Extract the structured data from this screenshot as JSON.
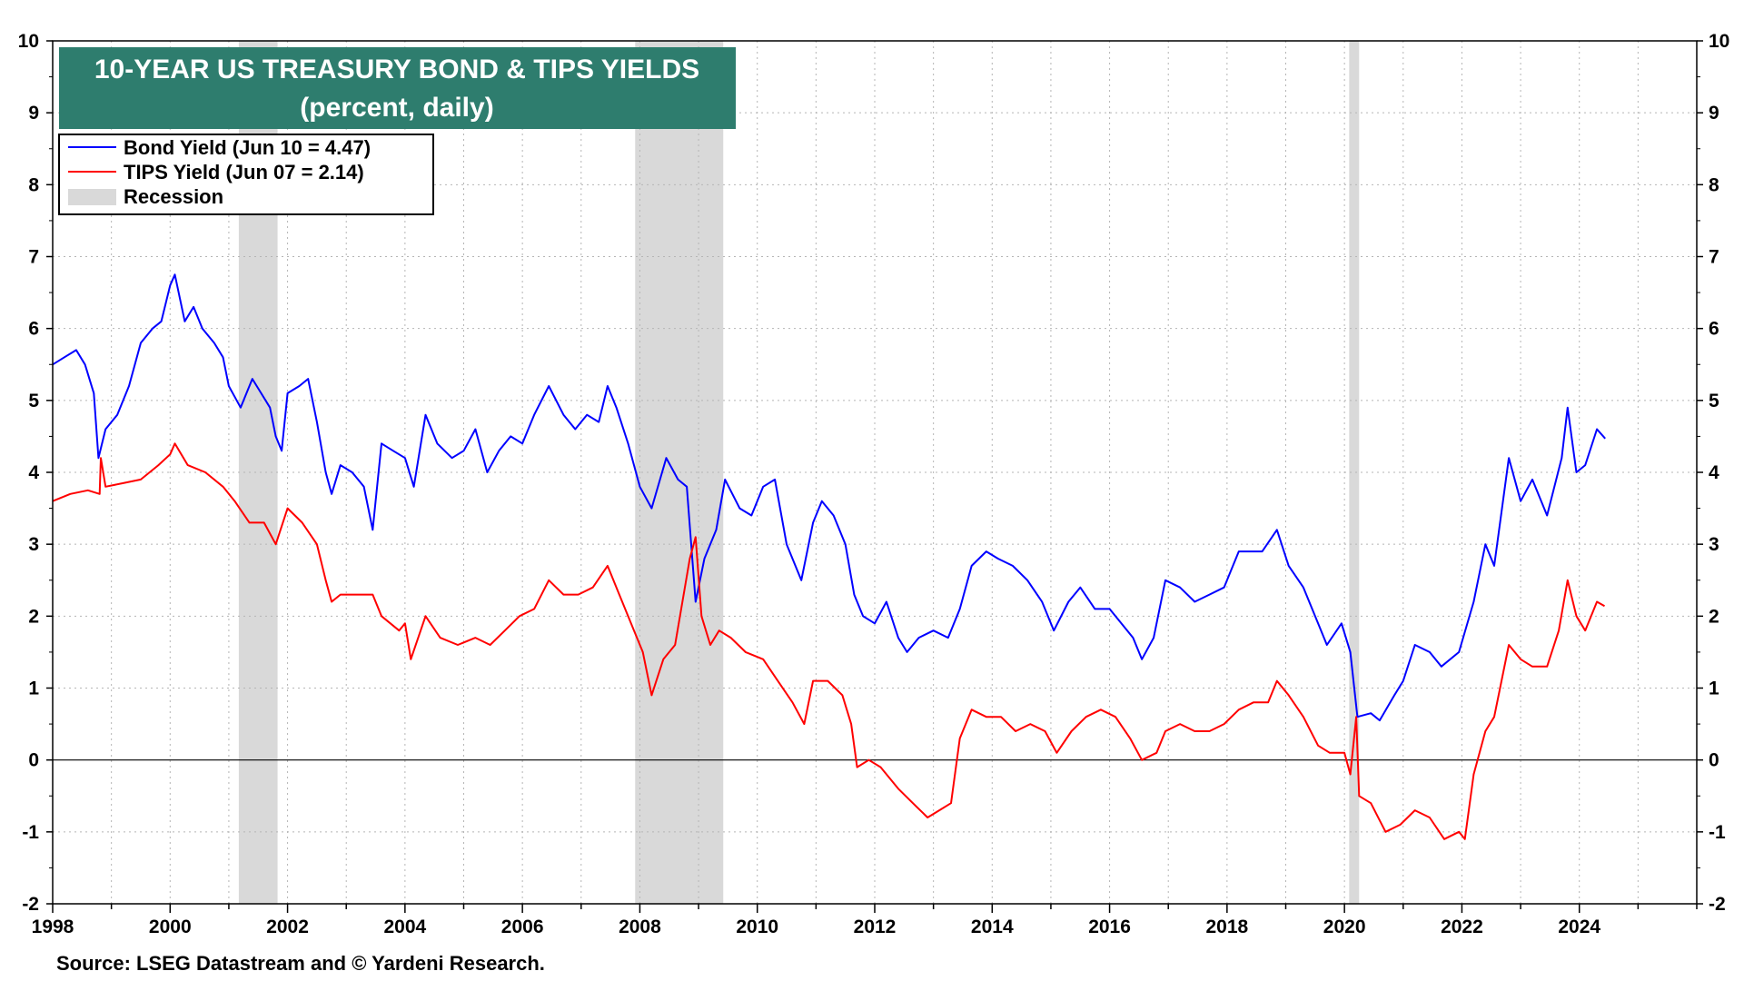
{
  "chart_data": {
    "type": "line",
    "title": "10-YEAR US TREASURY BOND & TIPS YIELDS",
    "subtitle": "(percent, daily)",
    "source": "Source: LSEG Datastream and © Yardeni Research.",
    "xlim": [
      1998,
      2026
    ],
    "ylim": [
      -2,
      10
    ],
    "x_ticks": [
      1998,
      2000,
      2002,
      2004,
      2006,
      2008,
      2010,
      2012,
      2014,
      2016,
      2018,
      2020,
      2022,
      2024
    ],
    "y_ticks": [
      -2,
      -1,
      0,
      1,
      2,
      3,
      4,
      5,
      6,
      7,
      8,
      9,
      10
    ],
    "grid": true,
    "legend_position": "top-left",
    "colors": {
      "bond": "#0000ff",
      "tips": "#ff0000",
      "recession": "#d9d9d9",
      "title_bg": "#2e7d6e"
    },
    "recessions": [
      {
        "label": "Recession",
        "start": 2001.17,
        "end": 2001.83
      },
      {
        "label": "Recession",
        "start": 2007.92,
        "end": 2009.42
      },
      {
        "label": "Recession",
        "start": 2020.08,
        "end": 2020.25
      }
    ],
    "series": [
      {
        "name": "Bond Yield (Jun 10 = 4.47)",
        "color": "#0000ff",
        "points": [
          [
            1998.0,
            5.5
          ],
          [
            1998.2,
            5.6
          ],
          [
            1998.4,
            5.7
          ],
          [
            1998.55,
            5.5
          ],
          [
            1998.7,
            5.1
          ],
          [
            1998.78,
            4.2
          ],
          [
            1998.9,
            4.6
          ],
          [
            1999.1,
            4.8
          ],
          [
            1999.3,
            5.2
          ],
          [
            1999.5,
            5.8
          ],
          [
            1999.7,
            6.0
          ],
          [
            1999.85,
            6.1
          ],
          [
            2000.0,
            6.6
          ],
          [
            2000.08,
            6.75
          ],
          [
            2000.25,
            6.1
          ],
          [
            2000.4,
            6.3
          ],
          [
            2000.55,
            6.0
          ],
          [
            2000.75,
            5.8
          ],
          [
            2000.9,
            5.6
          ],
          [
            2001.0,
            5.2
          ],
          [
            2001.2,
            4.9
          ],
          [
            2001.4,
            5.3
          ],
          [
            2001.55,
            5.1
          ],
          [
            2001.7,
            4.9
          ],
          [
            2001.8,
            4.5
          ],
          [
            2001.9,
            4.3
          ],
          [
            2002.0,
            5.1
          ],
          [
            2002.2,
            5.2
          ],
          [
            2002.35,
            5.3
          ],
          [
            2002.5,
            4.7
          ],
          [
            2002.65,
            4.0
          ],
          [
            2002.75,
            3.7
          ],
          [
            2002.9,
            4.1
          ],
          [
            2003.1,
            4.0
          ],
          [
            2003.3,
            3.8
          ],
          [
            2003.45,
            3.2
          ],
          [
            2003.6,
            4.4
          ],
          [
            2003.8,
            4.3
          ],
          [
            2004.0,
            4.2
          ],
          [
            2004.15,
            3.8
          ],
          [
            2004.35,
            4.8
          ],
          [
            2004.55,
            4.4
          ],
          [
            2004.8,
            4.2
          ],
          [
            2005.0,
            4.3
          ],
          [
            2005.2,
            4.6
          ],
          [
            2005.4,
            4.0
          ],
          [
            2005.6,
            4.3
          ],
          [
            2005.8,
            4.5
          ],
          [
            2006.0,
            4.4
          ],
          [
            2006.2,
            4.8
          ],
          [
            2006.45,
            5.2
          ],
          [
            2006.7,
            4.8
          ],
          [
            2006.9,
            4.6
          ],
          [
            2007.1,
            4.8
          ],
          [
            2007.3,
            4.7
          ],
          [
            2007.45,
            5.2
          ],
          [
            2007.6,
            4.9
          ],
          [
            2007.8,
            4.4
          ],
          [
            2008.0,
            3.8
          ],
          [
            2008.2,
            3.5
          ],
          [
            2008.45,
            4.2
          ],
          [
            2008.65,
            3.9
          ],
          [
            2008.8,
            3.8
          ],
          [
            2008.95,
            2.2
          ],
          [
            2009.1,
            2.8
          ],
          [
            2009.3,
            3.2
          ],
          [
            2009.45,
            3.9
          ],
          [
            2009.7,
            3.5
          ],
          [
            2009.9,
            3.4
          ],
          [
            2010.1,
            3.8
          ],
          [
            2010.3,
            3.9
          ],
          [
            2010.5,
            3.0
          ],
          [
            2010.75,
            2.5
          ],
          [
            2010.95,
            3.3
          ],
          [
            2011.1,
            3.6
          ],
          [
            2011.3,
            3.4
          ],
          [
            2011.5,
            3.0
          ],
          [
            2011.65,
            2.3
          ],
          [
            2011.8,
            2.0
          ],
          [
            2012.0,
            1.9
          ],
          [
            2012.2,
            2.2
          ],
          [
            2012.4,
            1.7
          ],
          [
            2012.55,
            1.5
          ],
          [
            2012.75,
            1.7
          ],
          [
            2013.0,
            1.8
          ],
          [
            2013.25,
            1.7
          ],
          [
            2013.45,
            2.1
          ],
          [
            2013.65,
            2.7
          ],
          [
            2013.9,
            2.9
          ],
          [
            2014.1,
            2.8
          ],
          [
            2014.35,
            2.7
          ],
          [
            2014.6,
            2.5
          ],
          [
            2014.85,
            2.2
          ],
          [
            2015.05,
            1.8
          ],
          [
            2015.3,
            2.2
          ],
          [
            2015.5,
            2.4
          ],
          [
            2015.75,
            2.1
          ],
          [
            2016.0,
            2.1
          ],
          [
            2016.2,
            1.9
          ],
          [
            2016.4,
            1.7
          ],
          [
            2016.55,
            1.4
          ],
          [
            2016.75,
            1.7
          ],
          [
            2016.95,
            2.5
          ],
          [
            2017.2,
            2.4
          ],
          [
            2017.45,
            2.2
          ],
          [
            2017.7,
            2.3
          ],
          [
            2017.95,
            2.4
          ],
          [
            2018.2,
            2.9
          ],
          [
            2018.4,
            2.9
          ],
          [
            2018.6,
            2.9
          ],
          [
            2018.85,
            3.2
          ],
          [
            2019.05,
            2.7
          ],
          [
            2019.3,
            2.4
          ],
          [
            2019.55,
            1.9
          ],
          [
            2019.7,
            1.6
          ],
          [
            2019.95,
            1.9
          ],
          [
            2020.1,
            1.5
          ],
          [
            2020.22,
            0.6
          ],
          [
            2020.45,
            0.65
          ],
          [
            2020.6,
            0.55
          ],
          [
            2020.85,
            0.9
          ],
          [
            2021.0,
            1.1
          ],
          [
            2021.2,
            1.6
          ],
          [
            2021.45,
            1.5
          ],
          [
            2021.65,
            1.3
          ],
          [
            2021.95,
            1.5
          ],
          [
            2022.2,
            2.2
          ],
          [
            2022.4,
            3.0
          ],
          [
            2022.55,
            2.7
          ],
          [
            2022.8,
            4.2
          ],
          [
            2023.0,
            3.6
          ],
          [
            2023.2,
            3.9
          ],
          [
            2023.45,
            3.4
          ],
          [
            2023.7,
            4.2
          ],
          [
            2023.8,
            4.9
          ],
          [
            2023.95,
            4.0
          ],
          [
            2024.1,
            4.1
          ],
          [
            2024.3,
            4.6
          ],
          [
            2024.44,
            4.47
          ]
        ]
      },
      {
        "name": "TIPS Yield (Jun 07 = 2.14)",
        "color": "#ff0000",
        "points": [
          [
            1998.0,
            3.6
          ],
          [
            1998.3,
            3.7
          ],
          [
            1998.6,
            3.75
          ],
          [
            1998.8,
            3.7
          ],
          [
            1998.82,
            4.2
          ],
          [
            1998.9,
            3.8
          ],
          [
            1999.2,
            3.85
          ],
          [
            1999.5,
            3.9
          ],
          [
            1999.8,
            4.1
          ],
          [
            2000.0,
            4.25
          ],
          [
            2000.08,
            4.4
          ],
          [
            2000.3,
            4.1
          ],
          [
            2000.6,
            4.0
          ],
          [
            2000.9,
            3.8
          ],
          [
            2001.1,
            3.6
          ],
          [
            2001.35,
            3.3
          ],
          [
            2001.6,
            3.3
          ],
          [
            2001.8,
            3.0
          ],
          [
            2002.0,
            3.5
          ],
          [
            2002.25,
            3.3
          ],
          [
            2002.5,
            3.0
          ],
          [
            2002.65,
            2.5
          ],
          [
            2002.75,
            2.2
          ],
          [
            2002.9,
            2.3
          ],
          [
            2003.2,
            2.3
          ],
          [
            2003.45,
            2.3
          ],
          [
            2003.6,
            2.0
          ],
          [
            2003.9,
            1.8
          ],
          [
            2004.0,
            1.9
          ],
          [
            2004.1,
            1.4
          ],
          [
            2004.35,
            2.0
          ],
          [
            2004.6,
            1.7
          ],
          [
            2004.9,
            1.6
          ],
          [
            2005.2,
            1.7
          ],
          [
            2005.45,
            1.6
          ],
          [
            2005.7,
            1.8
          ],
          [
            2005.95,
            2.0
          ],
          [
            2006.2,
            2.1
          ],
          [
            2006.45,
            2.5
          ],
          [
            2006.7,
            2.3
          ],
          [
            2006.95,
            2.3
          ],
          [
            2007.2,
            2.4
          ],
          [
            2007.45,
            2.7
          ],
          [
            2007.65,
            2.3
          ],
          [
            2007.9,
            1.8
          ],
          [
            2008.05,
            1.5
          ],
          [
            2008.2,
            0.9
          ],
          [
            2008.4,
            1.4
          ],
          [
            2008.6,
            1.6
          ],
          [
            2008.85,
            2.8
          ],
          [
            2008.95,
            3.1
          ],
          [
            2009.05,
            2.0
          ],
          [
            2009.2,
            1.6
          ],
          [
            2009.35,
            1.8
          ],
          [
            2009.55,
            1.7
          ],
          [
            2009.8,
            1.5
          ],
          [
            2010.1,
            1.4
          ],
          [
            2010.35,
            1.1
          ],
          [
            2010.6,
            0.8
          ],
          [
            2010.8,
            0.5
          ],
          [
            2010.95,
            1.1
          ],
          [
            2011.2,
            1.1
          ],
          [
            2011.45,
            0.9
          ],
          [
            2011.6,
            0.5
          ],
          [
            2011.7,
            -0.1
          ],
          [
            2011.9,
            0.0
          ],
          [
            2012.1,
            -0.1
          ],
          [
            2012.4,
            -0.4
          ],
          [
            2012.65,
            -0.6
          ],
          [
            2012.9,
            -0.8
          ],
          [
            2013.1,
            -0.7
          ],
          [
            2013.3,
            -0.6
          ],
          [
            2013.45,
            0.3
          ],
          [
            2013.65,
            0.7
          ],
          [
            2013.9,
            0.6
          ],
          [
            2014.15,
            0.6
          ],
          [
            2014.4,
            0.4
          ],
          [
            2014.65,
            0.5
          ],
          [
            2014.9,
            0.4
          ],
          [
            2015.1,
            0.1
          ],
          [
            2015.35,
            0.4
          ],
          [
            2015.6,
            0.6
          ],
          [
            2015.85,
            0.7
          ],
          [
            2016.1,
            0.6
          ],
          [
            2016.35,
            0.3
          ],
          [
            2016.55,
            0.0
          ],
          [
            2016.8,
            0.1
          ],
          [
            2016.95,
            0.4
          ],
          [
            2017.2,
            0.5
          ],
          [
            2017.45,
            0.4
          ],
          [
            2017.7,
            0.4
          ],
          [
            2017.95,
            0.5
          ],
          [
            2018.2,
            0.7
          ],
          [
            2018.45,
            0.8
          ],
          [
            2018.7,
            0.8
          ],
          [
            2018.85,
            1.1
          ],
          [
            2019.05,
            0.9
          ],
          [
            2019.3,
            0.6
          ],
          [
            2019.55,
            0.2
          ],
          [
            2019.75,
            0.1
          ],
          [
            2020.0,
            0.1
          ],
          [
            2020.1,
            -0.2
          ],
          [
            2020.2,
            0.6
          ],
          [
            2020.25,
            -0.5
          ],
          [
            2020.45,
            -0.6
          ],
          [
            2020.7,
            -1.0
          ],
          [
            2020.95,
            -0.9
          ],
          [
            2021.2,
            -0.7
          ],
          [
            2021.45,
            -0.8
          ],
          [
            2021.7,
            -1.1
          ],
          [
            2021.95,
            -1.0
          ],
          [
            2022.05,
            -1.1
          ],
          [
            2022.2,
            -0.2
          ],
          [
            2022.4,
            0.4
          ],
          [
            2022.55,
            0.6
          ],
          [
            2022.8,
            1.6
          ],
          [
            2023.0,
            1.4
          ],
          [
            2023.2,
            1.3
          ],
          [
            2023.45,
            1.3
          ],
          [
            2023.65,
            1.8
          ],
          [
            2023.8,
            2.5
          ],
          [
            2023.95,
            2.0
          ],
          [
            2024.1,
            1.8
          ],
          [
            2024.3,
            2.2
          ],
          [
            2024.43,
            2.14
          ]
        ]
      }
    ],
    "legend": {
      "bond_label": "Bond Yield (Jun 10 = 4.47)",
      "tips_label": "TIPS Yield (Jun 07 = 2.14)",
      "recession_label": "Recession"
    }
  }
}
